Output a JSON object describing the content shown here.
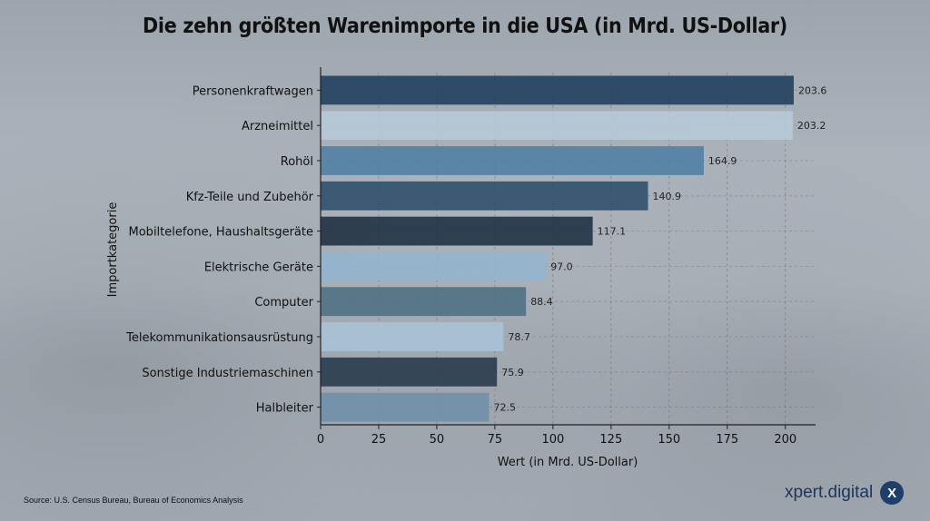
{
  "page": {
    "source": "Source: U.S. Census Bureau, Bureau of Economics Analysis",
    "brand_name": "xpert.digital",
    "brand_icon": "x-logo-icon",
    "brand_letter": "X"
  },
  "chart_data": {
    "type": "bar",
    "orientation": "horizontal",
    "title": "Die zehn größten Warenimporte in die USA (in Mrd. US-Dollar)",
    "xlabel": "Wert (in Mrd. US-Dollar)",
    "ylabel": "Importkategorie",
    "xlim": [
      0,
      213
    ],
    "xticks": [
      0,
      25,
      50,
      75,
      100,
      125,
      150,
      175,
      200
    ],
    "grid": true,
    "categories": [
      "Personenkraftwagen",
      "Arzneimittel",
      "Rohöl",
      "Kfz-Teile und Zubehör",
      "Mobiltelefone, Haushaltsgeräte",
      "Elektrische Geräte",
      "Computer",
      "Telekommunikationsausrüstung",
      "Sonstige Industriemaschinen",
      "Halbleiter"
    ],
    "values": [
      203.6,
      203.2,
      164.9,
      140.9,
      117.1,
      97.0,
      88.4,
      78.7,
      75.9,
      72.5
    ],
    "value_labels": [
      "203.6",
      "203.2",
      "164.9",
      "140.9",
      "117.1",
      "97.0",
      "88.4",
      "78.7",
      "75.9",
      "72.5"
    ],
    "colors": [
      "#1f3d5c",
      "#b7c9d8",
      "#4f7ea3",
      "#2d4d6a",
      "#1c2f42",
      "#93b4cf",
      "#4d6f82",
      "#a9c3d8",
      "#27394a",
      "#6f90ab"
    ]
  }
}
